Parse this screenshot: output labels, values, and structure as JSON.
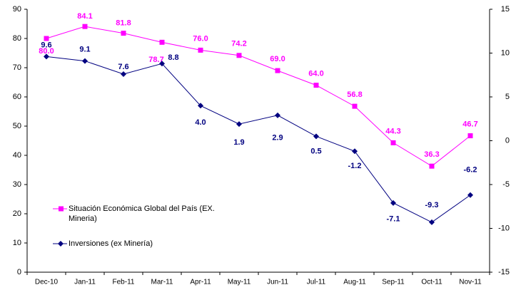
{
  "chart_data": {
    "type": "line",
    "categories": [
      "Dec-10",
      "Jan-11",
      "Feb-11",
      "Mar-11",
      "Apr-11",
      "May-11",
      "Jun-11",
      "Jul-11",
      "Aug-11",
      "Sep-11",
      "Oct-11",
      "Nov-11"
    ],
    "series": [
      {
        "name": "Situación Económica Global del País (EX. Mineria)",
        "color": "#ff00ff",
        "values": [
          80.0,
          84.1,
          81.8,
          78.7,
          76.0,
          74.2,
          69.0,
          64.0,
          56.8,
          44.3,
          36.3,
          46.7
        ],
        "value_labels": [
          "80.0",
          "84.1",
          "81.8",
          "78.7",
          "76.0",
          "74.2",
          "69.0",
          "64.0",
          "56.8",
          "44.3",
          "36.3",
          "46.7"
        ]
      },
      {
        "name": "Inversiones (ex Minería)",
        "color": "#000080",
        "axis": "y2",
        "values": [
          9.6,
          9.1,
          7.6,
          8.8,
          4.0,
          1.9,
          2.9,
          0.5,
          -1.2,
          -7.1,
          -9.3,
          -6.2
        ],
        "value_labels": [
          "9.6",
          "9.1",
          "7.6",
          "8.8",
          "4.0",
          "1.9",
          "2.9",
          "0.5",
          "-1.2",
          "-7.1",
          "-9.3",
          "-6.2"
        ]
      }
    ],
    "ylim": [
      0,
      90
    ],
    "yticks": [
      0,
      10,
      20,
      30,
      40,
      50,
      60,
      70,
      80,
      90
    ],
    "y2lim": [
      -15,
      15
    ],
    "y2ticks": [
      -15,
      -10,
      -5,
      0,
      5,
      10,
      15
    ]
  }
}
